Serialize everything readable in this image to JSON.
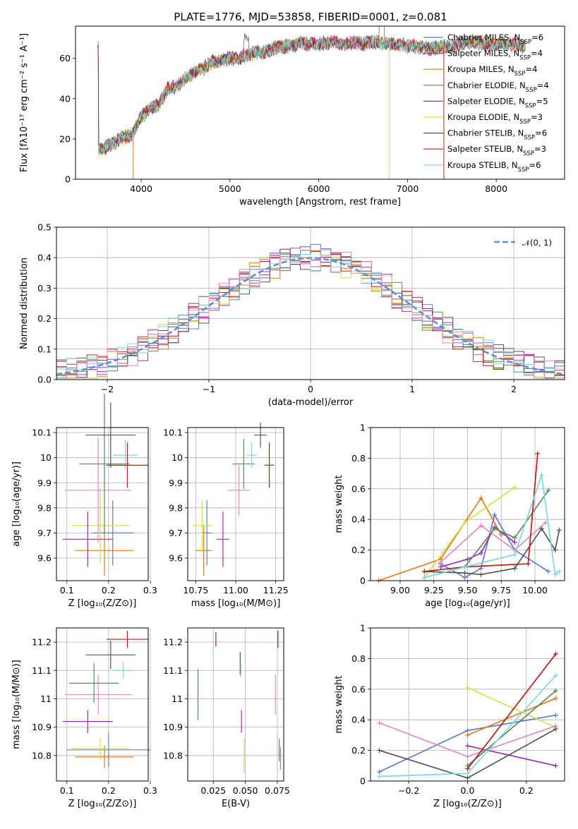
{
  "title": "PLATE=1776, MJD=53858, FIBERID=0001, z=0.081",
  "chart_data": [
    {
      "id": "spectrum",
      "type": "line",
      "xlabel": "wavelength [Angstrom, rest frame]",
      "ylabel": "Flux [fλ10⁻¹⁷ erg cm⁻² s⁻¹ A⁻¹]",
      "xlim": [
        3260,
        8770
      ],
      "ylim": [
        0,
        76
      ],
      "xticks": [
        4000,
        5000,
        6000,
        7000,
        8000
      ],
      "yticks": [
        0,
        20,
        40,
        60
      ],
      "grid": false,
      "legend_position": "top-right",
      "envelope": {
        "x": [
          3520,
          3600,
          3700,
          3800,
          3900,
          4000,
          4100,
          4200,
          4300,
          4400,
          4500,
          4600,
          4700,
          4800,
          4900,
          5000,
          5100,
          5200,
          5300,
          5400,
          5500,
          5600,
          5700,
          5800,
          5900,
          6000,
          6100,
          6200,
          6300,
          6400,
          6500,
          6600,
          6700,
          6800,
          6900,
          7000,
          7100,
          7200,
          7300,
          7400,
          7500,
          7600,
          7700,
          7800,
          7900,
          8000,
          8100,
          8200,
          8300
        ],
        "y": [
          14,
          16,
          18,
          21,
          22,
          31,
          35,
          37,
          45,
          46,
          50,
          53,
          55,
          58,
          59,
          60,
          60,
          62,
          63,
          63,
          65,
          66,
          66,
          68,
          67,
          67,
          68,
          68,
          67,
          68,
          67,
          68,
          68,
          67,
          67,
          66,
          66,
          65,
          65,
          66,
          66,
          67,
          68,
          68,
          67,
          67,
          67,
          67,
          66
        ]
      },
      "series": [
        {
          "name": "Chabrier MILES, N_SSP=6",
          "color": "#5a7fc8"
        },
        {
          "name": "Salpeter MILES, N_SSP=4",
          "color": "#a23fb8"
        },
        {
          "name": "Kroupa MILES, N_SSP=4",
          "color": "#e07b1e"
        },
        {
          "name": "Chabrier ELODIE, N_SSP=4",
          "color": "#5a8a5e"
        },
        {
          "name": "Salpeter ELODIE, N_SSP=5",
          "color": "#9a2fb0"
        },
        {
          "name": "Kroupa ELODIE, N_SSP=3",
          "color": "#d4e04a"
        },
        {
          "name": "Chabrier STELIB, N_SSP=6",
          "color": "#555555"
        },
        {
          "name": "Salpeter STELIB, N_SSP=3",
          "color": "#b81c1c"
        },
        {
          "name": "Kroupa STELIB, N_SSP=6",
          "color": "#7fd8dc"
        }
      ]
    },
    {
      "id": "residuals",
      "type": "histogram",
      "xlabel": "(data-model)/error",
      "ylabel": "Normed distribution",
      "xlim": [
        -2.5,
        2.5
      ],
      "ylim": [
        0,
        0.5
      ],
      "xticks": [
        -2,
        -1,
        0,
        1,
        2
      ],
      "xtick_labels": [
        "−2",
        "−1",
        "0",
        "1",
        "2"
      ],
      "yticks": [
        0.0,
        0.1,
        0.2,
        0.3,
        0.4,
        0.5
      ],
      "ytick_labels": [
        "0.0",
        "0.1",
        "0.2",
        "0.3",
        "0.4",
        "0.5"
      ],
      "grid": true,
      "legend": {
        "label": "𝒩(0, 1)",
        "position": "top-right",
        "color": "#5b8fd6"
      },
      "bin_width": 0.1
    },
    {
      "id": "age-vs-Z",
      "type": "errorbar",
      "xlabel": "Z [log₁₀(Z/Z⊙)]",
      "ylabel": "age  [log₁₀(age/yr)]",
      "xlim": [
        0.075,
        0.295
      ],
      "ylim": [
        9.51,
        10.12
      ],
      "xticks": [
        0.1,
        0.2,
        0.3
      ],
      "yticks": [
        9.6,
        9.7,
        9.8,
        9.9,
        10.0,
        10.1
      ],
      "points": [
        {
          "color": "#5a7fc8",
          "x": 0.21,
          "xerr": 0.05,
          "y": 9.7,
          "yerr": 0.13
        },
        {
          "color": "#e07b1e",
          "x": 0.19,
          "xerr": 0.07,
          "y": 9.63,
          "yerr": 0.1
        },
        {
          "color": "#d4e04a",
          "x": 0.18,
          "xerr": 0.07,
          "y": 9.73,
          "yerr": 0.15
        },
        {
          "color": "#9a2fb0",
          "x": 0.15,
          "xerr": 0.06,
          "y": 9.675,
          "yerr": 0.11
        },
        {
          "color": "#e08bbf",
          "x": 0.175,
          "xerr": 0.08,
          "y": 9.87,
          "yerr": 0.21
        },
        {
          "color": "#5a8a5e",
          "x": 0.19,
          "xerr": 0.06,
          "y": 9.975,
          "yerr": 0.28
        },
        {
          "color": "#555555",
          "x": 0.205,
          "xerr": 0.06,
          "y": 10.09,
          "yerr": 0.13
        },
        {
          "color": "#7fd8dc",
          "x": 0.24,
          "xerr": 0.03,
          "y": 10.01,
          "yerr": 0.06
        },
        {
          "color": "#b81c1c",
          "x": 0.245,
          "xerr": 0.05,
          "y": 9.97,
          "yerr": 0.09
        }
      ]
    },
    {
      "id": "age-vs-mass",
      "type": "errorbar",
      "xlabel": "mass [log₁₀(M/M⊙)]",
      "xlim": [
        10.7,
        11.3
      ],
      "ylim": [
        9.51,
        10.12
      ],
      "xticks": [
        10.75,
        11.0,
        11.25
      ],
      "xtick_labels": [
        "10.75",
        "11.00",
        "11.25"
      ],
      "yticks": [
        9.6,
        9.7,
        9.8,
        9.9,
        10.0,
        10.1
      ],
      "points": [
        {
          "color": "#5a7fc8",
          "x": 10.82,
          "xerr": 0.03,
          "y": 9.7,
          "yerr": 0.13
        },
        {
          "color": "#e07b1e",
          "x": 10.8,
          "xerr": 0.05,
          "y": 9.63,
          "yerr": 0.1
        },
        {
          "color": "#d4e04a",
          "x": 10.79,
          "xerr": 0.06,
          "y": 9.73,
          "yerr": 0.1
        },
        {
          "color": "#9a2fb0",
          "x": 10.92,
          "xerr": 0.04,
          "y": 9.675,
          "yerr": 0.11
        },
        {
          "color": "#e08bbf",
          "x": 11.02,
          "xerr": 0.07,
          "y": 9.87,
          "yerr": 0.1
        },
        {
          "color": "#5a8a5e",
          "x": 11.05,
          "xerr": 0.07,
          "y": 9.975,
          "yerr": 0.1
        },
        {
          "color": "#555555",
          "x": 11.155,
          "xerr": 0.04,
          "y": 10.09,
          "yerr": 0.05
        },
        {
          "color": "#7fd8dc",
          "x": 11.1,
          "xerr": 0.03,
          "y": 10.01,
          "yerr": 0.05
        },
        {
          "color": "#b81c1c",
          "x": 11.21,
          "xerr": 0.03,
          "y": 9.97,
          "yerr": 0.09
        }
      ]
    },
    {
      "id": "weight-vs-age",
      "type": "line",
      "xlabel": "age  [log₁₀(age/yr)]",
      "ylabel": "mass weight",
      "xlim": [
        8.78,
        10.22
      ],
      "ylim": [
        0,
        1.0
      ],
      "xticks": [
        9.0,
        9.25,
        9.5,
        9.75,
        10.0
      ],
      "xtick_labels": [
        "9.00",
        "9.25",
        "9.50",
        "9.75",
        "10.00"
      ],
      "yticks": [
        0.0,
        0.2,
        0.4,
        0.6,
        0.8,
        1.0
      ],
      "grid": true,
      "series": [
        {
          "color": "#5a7fc8",
          "x": [
            9.3,
            9.48,
            9.6,
            9.7,
            9.85,
            10.1
          ],
          "y": [
            0.11,
            0.02,
            0.08,
            0.43,
            0.2,
            0.06
          ]
        },
        {
          "color": "#e07b1e",
          "x": [
            8.84,
            9.3,
            9.6,
            9.75
          ],
          "y": [
            0.0,
            0.14,
            0.54,
            0.3
          ]
        },
        {
          "color": "#d4e04a",
          "x": [
            9.18,
            9.48,
            9.85
          ],
          "y": [
            0.02,
            0.38,
            0.61
          ]
        },
        {
          "color": "#9a2fb0",
          "x": [
            9.3,
            9.5,
            9.6,
            9.7,
            9.85
          ],
          "y": [
            0.09,
            0.14,
            0.18,
            0.35,
            0.25
          ]
        },
        {
          "color": "#e08bbf",
          "x": [
            9.3,
            9.6,
            9.85,
            10.08
          ],
          "y": [
            0.12,
            0.36,
            0.2,
            0.38
          ]
        },
        {
          "color": "#5a8a5e",
          "x": [
            9.18,
            9.48,
            9.7,
            9.85,
            10.1
          ],
          "y": [
            0.02,
            0.09,
            0.34,
            0.28,
            0.59
          ]
        },
        {
          "color": "#555555",
          "x": [
            9.18,
            9.48,
            9.6,
            9.85,
            10.05,
            10.15,
            10.18
          ],
          "y": [
            0.06,
            0.05,
            0.04,
            0.08,
            0.34,
            0.2,
            0.33
          ]
        },
        {
          "color": "#b81c1c",
          "x": [
            9.18,
            9.48,
            9.95,
            10.02
          ],
          "y": [
            0.06,
            0.09,
            0.11,
            0.83
          ]
        },
        {
          "color": "#7fd8dc",
          "x": [
            9.18,
            9.48,
            9.85,
            10.05,
            10.15,
            10.18
          ],
          "y": [
            0.02,
            0.09,
            0.17,
            0.69,
            0.04,
            0.06
          ]
        }
      ]
    },
    {
      "id": "mass-vs-Z",
      "type": "errorbar",
      "xlabel": "Z [log₁₀(Z/Z⊙)]",
      "ylabel": "mass [log₁₀(M/M⊙)]",
      "xlim": [
        0.075,
        0.295
      ],
      "ylim": [
        10.71,
        11.25
      ],
      "xticks": [
        0.1,
        0.2,
        0.3
      ],
      "yticks": [
        10.8,
        10.9,
        11.0,
        11.1,
        11.2
      ],
      "points": [
        {
          "color": "#5a7fc8",
          "x": 0.2,
          "xerr": 0.1,
          "y": 10.82,
          "yerr": 0.06
        },
        {
          "color": "#e07b1e",
          "x": 0.19,
          "xerr": 0.07,
          "y": 10.795,
          "yerr": 0.04
        },
        {
          "color": "#d4e04a",
          "x": 0.18,
          "xerr": 0.07,
          "y": 10.825,
          "yerr": 0.04
        },
        {
          "color": "#9a2fb0",
          "x": 0.15,
          "xerr": 0.06,
          "y": 10.92,
          "yerr": 0.04
        },
        {
          "color": "#e08bbf",
          "x": 0.175,
          "xerr": 0.08,
          "y": 11.015,
          "yerr": 0.07
        },
        {
          "color": "#5a8a5e",
          "x": 0.165,
          "xerr": 0.06,
          "y": 11.055,
          "yerr": 0.07
        },
        {
          "color": "#555555",
          "x": 0.205,
          "xerr": 0.06,
          "y": 11.155,
          "yerr": 0.05
        },
        {
          "color": "#7fd8dc",
          "x": 0.235,
          "xerr": 0.025,
          "y": 11.1,
          "yerr": 0.03
        },
        {
          "color": "#b81c1c",
          "x": 0.245,
          "xerr": 0.05,
          "y": 11.21,
          "yerr": 0.03
        }
      ]
    },
    {
      "id": "mass-vs-ebv",
      "type": "errorbar",
      "xlabel": "E(B-V)",
      "xlim": [
        0.005,
        0.08
      ],
      "ylim": [
        10.71,
        11.25
      ],
      "xticks": [
        0.025,
        0.05,
        0.075
      ],
      "xtick_labels": [
        "0.025",
        "0.050",
        "0.075"
      ],
      "yticks": [
        10.8,
        10.9,
        11.0,
        11.1,
        11.2
      ],
      "points": [
        {
          "color": "#e07b1e",
          "x": 0.0775,
          "y": 10.79,
          "yerr": 0.04
        },
        {
          "color": "#5a7fc8",
          "x": 0.0765,
          "y": 10.82,
          "yerr": 0.04
        },
        {
          "color": "#d4e04a",
          "x": 0.049,
          "y": 10.8,
          "yerr": 0.06
        },
        {
          "color": "#9a2fb0",
          "x": 0.047,
          "y": 10.92,
          "yerr": 0.04
        },
        {
          "color": "#e08bbf",
          "x": 0.0735,
          "y": 11.015,
          "yerr": 0.07
        },
        {
          "color": "#5a8a5e",
          "x": 0.013,
          "y": 11.015,
          "yerr": 0.09
        },
        {
          "color": "#555555",
          "x": 0.046,
          "y": 11.125,
          "yerr": 0.04
        },
        {
          "color": "#7fd8dc",
          "x": 0.0465,
          "y": 11.1,
          "yerr": 0.025
        },
        {
          "color": "#b81c1c",
          "x": 0.027,
          "y": 11.21,
          "yerr": 0.025
        },
        {
          "color": "#b81c1c",
          "x": 0.0755,
          "y": 11.21,
          "yerr": 0.03
        }
      ]
    },
    {
      "id": "weight-vs-Z",
      "type": "line",
      "xlabel": "Z [log₁₀(Z/Z⊙)]",
      "ylabel": "mass weight",
      "xlim": [
        -0.33,
        0.33
      ],
      "ylim": [
        0,
        1.0
      ],
      "xticks": [
        -0.2,
        0.0,
        0.2
      ],
      "xtick_labels": [
        "−0.2",
        "0.0",
        "0.2"
      ],
      "yticks": [
        0.0,
        0.2,
        0.4,
        0.6,
        0.8,
        1.0
      ],
      "grid": true,
      "series": [
        {
          "color": "#5a7fc8",
          "x": [
            -0.3,
            0.0,
            0.3
          ],
          "y": [
            0.06,
            0.33,
            0.43
          ]
        },
        {
          "color": "#e07b1e",
          "x": [
            0.0,
            0.3
          ],
          "y": [
            0.3,
            0.54
          ]
        },
        {
          "color": "#d4e04a",
          "x": [
            0.0,
            0.3
          ],
          "y": [
            0.61,
            0.35
          ]
        },
        {
          "color": "#9a2fb0",
          "x": [
            0.0,
            0.3
          ],
          "y": [
            0.23,
            0.1
          ]
        },
        {
          "color": "#e08bbf",
          "x": [
            -0.3,
            0.0,
            0.3
          ],
          "y": [
            0.38,
            0.16,
            0.36
          ]
        },
        {
          "color": "#5a8a5e",
          "x": [
            0.0,
            0.3
          ],
          "y": [
            0.1,
            0.59
          ]
        },
        {
          "color": "#555555",
          "x": [
            -0.3,
            0.0,
            0.3
          ],
          "y": [
            0.2,
            0.02,
            0.34
          ]
        },
        {
          "color": "#b81c1c",
          "x": [
            0.0,
            0.3
          ],
          "y": [
            0.08,
            0.83
          ]
        },
        {
          "color": "#7fd8dc",
          "x": [
            -0.3,
            0.0,
            0.3
          ],
          "y": [
            0.03,
            0.05,
            0.69
          ]
        }
      ]
    }
  ]
}
